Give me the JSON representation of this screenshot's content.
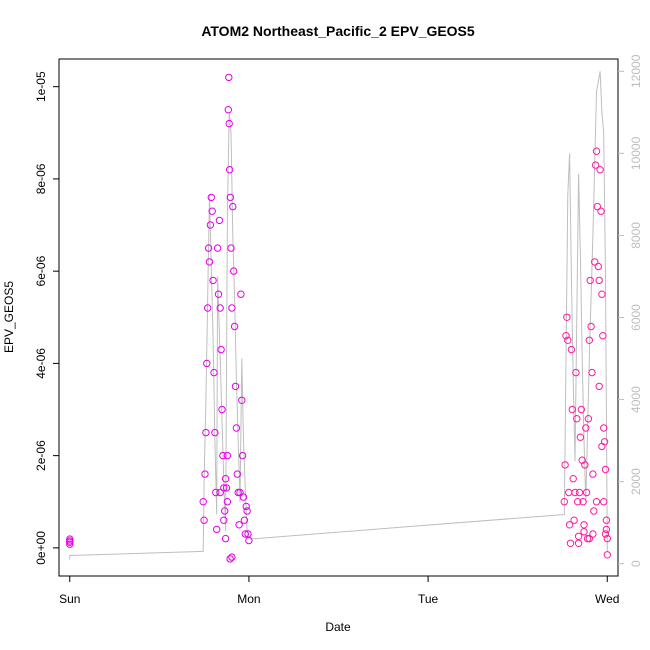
{
  "chart_data": {
    "type": "scatter",
    "title": "ATOM2 Northeast_Pacific_2 EPV_GEOS5",
    "xlabel": "Date",
    "ylabel": "EPV_GEOS5",
    "x_ticks": [
      "Sun",
      "Mon",
      "Tue",
      "Wed"
    ],
    "x_range_days": [
      -0.06,
      3.06
    ],
    "y_ticks": [
      "0e+00",
      "2e-06",
      "4e-06",
      "6e-06",
      "8e-06",
      "1e-05"
    ],
    "ylim": [
      -6.1e-07,
      1.06e-05
    ],
    "y2_ticks": [
      "0",
      "2000",
      "4000",
      "6000",
      "8000",
      "10000",
      "12000"
    ],
    "y2lim": [
      -300,
      12300
    ],
    "marker": "open-circle",
    "colors": {
      "early": "#e600e6",
      "late": "#ff1aa3",
      "altitude": "#bebebe",
      "axis": "#000000",
      "axis_right": "#bebebe"
    },
    "series": [
      {
        "color": "early",
        "points": [
          [
            0.0,
            1.9e-07
          ],
          [
            0.0,
            1.5e-07
          ],
          [
            0.0,
            1.2e-07
          ],
          [
            0.0,
            8e-08
          ],
          [
            0.745,
            1e-06
          ],
          [
            0.75,
            6e-07
          ],
          [
            0.755,
            1.6e-06
          ],
          [
            0.76,
            2.5e-06
          ],
          [
            0.765,
            4e-06
          ],
          [
            0.77,
            5.2e-06
          ],
          [
            0.775,
            6.5e-06
          ],
          [
            0.78,
            6.2e-06
          ],
          [
            0.785,
            7e-06
          ],
          [
            0.79,
            7.6e-06
          ],
          [
            0.795,
            7.3e-06
          ],
          [
            0.8,
            5.8e-06
          ],
          [
            0.805,
            3.8e-06
          ],
          [
            0.81,
            2.5e-06
          ],
          [
            0.815,
            1.2e-06
          ],
          [
            0.82,
            4e-07
          ],
          [
            0.825,
            6.5e-06
          ],
          [
            0.83,
            5.5e-06
          ],
          [
            0.835,
            7.1e-06
          ],
          [
            0.84,
            5.2e-06
          ],
          [
            0.845,
            4.3e-06
          ],
          [
            0.85,
            3e-06
          ],
          [
            0.855,
            2e-06
          ],
          [
            0.86,
            1.3e-06
          ],
          [
            0.865,
            8e-07
          ],
          [
            0.87,
            2e-07
          ],
          [
            0.875,
            1.3e-06
          ],
          [
            0.88,
            2e-06
          ],
          [
            0.885,
            9.5e-06
          ],
          [
            0.888,
            1.02e-05
          ],
          [
            0.89,
            9.2e-06
          ],
          [
            0.893,
            8.2e-06
          ],
          [
            0.896,
            7.6e-06
          ],
          [
            0.9,
            6.5e-06
          ],
          [
            0.905,
            5.2e-06
          ],
          [
            0.91,
            7.4e-06
          ],
          [
            0.915,
            6e-06
          ],
          [
            0.92,
            4.8e-06
          ],
          [
            0.925,
            3.5e-06
          ],
          [
            0.93,
            2.6e-06
          ],
          [
            0.935,
            1.6e-06
          ],
          [
            0.94,
            1.2e-06
          ],
          [
            0.945,
            5e-07
          ],
          [
            0.95,
            1.2e-06
          ],
          [
            0.955,
            5.5e-06
          ],
          [
            0.96,
            3.2e-06
          ],
          [
            0.965,
            2e-06
          ],
          [
            0.97,
            1.1e-06
          ],
          [
            0.975,
            6e-07
          ],
          [
            0.98,
            3e-07
          ],
          [
            0.985,
            9e-07
          ],
          [
            0.99,
            8e-07
          ],
          [
            0.995,
            3e-07
          ],
          [
            1.0,
            1.6e-07
          ],
          [
            0.905,
            -2e-07
          ],
          [
            0.895,
            -2.4e-07
          ],
          [
            0.88,
            1e-06
          ],
          [
            0.87,
            1.5e-06
          ],
          [
            0.86,
            6e-07
          ],
          [
            0.84,
            1.2e-06
          ]
        ]
      },
      {
        "color": "late",
        "points": [
          [
            2.76,
            1e-06
          ],
          [
            2.765,
            1.8e-06
          ],
          [
            2.77,
            4.6e-06
          ],
          [
            2.775,
            5e-06
          ],
          [
            2.78,
            4.5e-06
          ],
          [
            2.785,
            1.2e-06
          ],
          [
            2.79,
            5e-07
          ],
          [
            2.795,
            1e-07
          ],
          [
            2.8,
            4.3e-06
          ],
          [
            2.805,
            3e-06
          ],
          [
            2.81,
            1.5e-06
          ],
          [
            2.815,
            6e-07
          ],
          [
            2.82,
            1.2e-06
          ],
          [
            2.825,
            3.8e-06
          ],
          [
            2.83,
            2.8e-06
          ],
          [
            2.835,
            1e-06
          ],
          [
            2.84,
            2.5e-07
          ],
          [
            2.845,
            1.2e-06
          ],
          [
            2.85,
            2.4e-06
          ],
          [
            2.855,
            3e-06
          ],
          [
            2.86,
            1.9e-06
          ],
          [
            2.865,
            1e-06
          ],
          [
            2.87,
            3.5e-07
          ],
          [
            2.875,
            1.8e-06
          ],
          [
            2.88,
            2.6e-06
          ],
          [
            2.885,
            1.2e-06
          ],
          [
            2.89,
            2e-07
          ],
          [
            2.895,
            2.8e-06
          ],
          [
            2.9,
            4.5e-06
          ],
          [
            2.905,
            5.8e-06
          ],
          [
            2.91,
            4.8e-06
          ],
          [
            2.915,
            3.8e-06
          ],
          [
            2.92,
            1.6e-06
          ],
          [
            2.925,
            8e-07
          ],
          [
            2.93,
            6.2e-06
          ],
          [
            2.935,
            8.3e-06
          ],
          [
            2.94,
            8.6e-06
          ],
          [
            2.945,
            7.4e-06
          ],
          [
            2.95,
            6.1e-06
          ],
          [
            2.955,
            5.8e-06
          ],
          [
            2.96,
            8.2e-06
          ],
          [
            2.965,
            7.3e-06
          ],
          [
            2.97,
            5.5e-06
          ],
          [
            2.975,
            4.6e-06
          ],
          [
            2.98,
            2.6e-06
          ],
          [
            2.985,
            2.3e-06
          ],
          [
            2.99,
            1.7e-06
          ],
          [
            2.995,
            6e-07
          ],
          [
            3.0,
            2e-07
          ],
          [
            3.0,
            -1.5e-07
          ],
          [
            2.995,
            4e-07
          ],
          [
            2.99,
            3e-07
          ],
          [
            2.98,
            1e-06
          ],
          [
            2.97,
            2.2e-06
          ],
          [
            2.955,
            3.5e-06
          ],
          [
            2.94,
            1e-06
          ],
          [
            2.92,
            3e-07
          ],
          [
            2.9,
            2e-07
          ],
          [
            2.87,
            5e-07
          ],
          [
            2.84,
            1e-07
          ]
        ]
      }
    ],
    "altitude_line": [
      [
        0.0,
        100
      ],
      [
        0.0,
        200
      ],
      [
        0.745,
        300
      ],
      [
        0.75,
        2000
      ],
      [
        0.76,
        4000
      ],
      [
        0.77,
        6500
      ],
      [
        0.78,
        9000
      ],
      [
        0.79,
        7200
      ],
      [
        0.8,
        5500
      ],
      [
        0.81,
        3000
      ],
      [
        0.82,
        1200
      ],
      [
        0.825,
        7000
      ],
      [
        0.84,
        5000
      ],
      [
        0.85,
        3500
      ],
      [
        0.86,
        2000
      ],
      [
        0.87,
        800
      ],
      [
        0.88,
        8500
      ],
      [
        0.89,
        11000
      ],
      [
        0.9,
        10500
      ],
      [
        0.91,
        8000
      ],
      [
        0.92,
        6500
      ],
      [
        0.93,
        4500
      ],
      [
        0.94,
        3000
      ],
      [
        0.95,
        1500
      ],
      [
        0.96,
        5000
      ],
      [
        0.97,
        3000
      ],
      [
        0.98,
        1800
      ],
      [
        0.99,
        800
      ],
      [
        1.0,
        600
      ],
      [
        2.76,
        1200
      ],
      [
        2.77,
        5000
      ],
      [
        2.78,
        9000
      ],
      [
        2.79,
        10000
      ],
      [
        2.8,
        7000
      ],
      [
        2.81,
        4500
      ],
      [
        2.82,
        2500
      ],
      [
        2.83,
        6000
      ],
      [
        2.84,
        9500
      ],
      [
        2.85,
        7500
      ],
      [
        2.86,
        5000
      ],
      [
        2.87,
        3000
      ],
      [
        2.88,
        1500
      ],
      [
        2.9,
        5000
      ],
      [
        2.92,
        8000
      ],
      [
        2.94,
        11500
      ],
      [
        2.96,
        12000
      ],
      [
        2.97,
        11000
      ],
      [
        2.98,
        10500
      ],
      [
        2.99,
        7000
      ],
      [
        3.0,
        300
      ]
    ]
  }
}
